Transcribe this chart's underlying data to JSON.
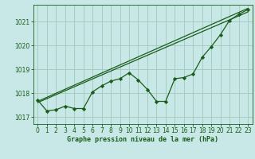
{
  "background_color": "#c8e8e8",
  "grid_color": "#a0c8b8",
  "line_color": "#1a5c1a",
  "xlabel": "Graphe pression niveau de la mer (hPa)",
  "ylim": [
    1016.7,
    1021.7
  ],
  "xlim": [
    -0.5,
    23.5
  ],
  "yticks": [
    1017,
    1018,
    1019,
    1020,
    1021
  ],
  "xticks": [
    0,
    1,
    2,
    3,
    4,
    5,
    6,
    7,
    8,
    9,
    10,
    11,
    12,
    13,
    14,
    15,
    16,
    17,
    18,
    19,
    20,
    21,
    22,
    23
  ],
  "trend1_x": [
    0,
    23
  ],
  "trend1_y": [
    1017.6,
    1021.4
  ],
  "trend2_x": [
    0,
    23
  ],
  "trend2_y": [
    1017.65,
    1021.55
  ],
  "series_x": [
    0,
    1,
    2,
    3,
    4,
    5,
    6,
    7,
    8,
    9,
    10,
    11,
    12,
    13,
    14,
    15,
    16,
    17,
    18,
    19,
    20,
    21,
    22,
    23
  ],
  "series_y": [
    1017.7,
    1017.25,
    1017.3,
    1017.45,
    1017.35,
    1017.35,
    1018.05,
    1018.3,
    1018.5,
    1018.6,
    1018.85,
    1018.55,
    1018.15,
    1017.65,
    1017.65,
    1018.6,
    1018.65,
    1018.8,
    1019.5,
    1019.95,
    1020.45,
    1021.05,
    1021.3,
    1021.5
  ],
  "xlabel_fontsize": 6.0,
  "tick_fontsize": 5.5,
  "linewidth": 0.9,
  "markersize": 2.2
}
